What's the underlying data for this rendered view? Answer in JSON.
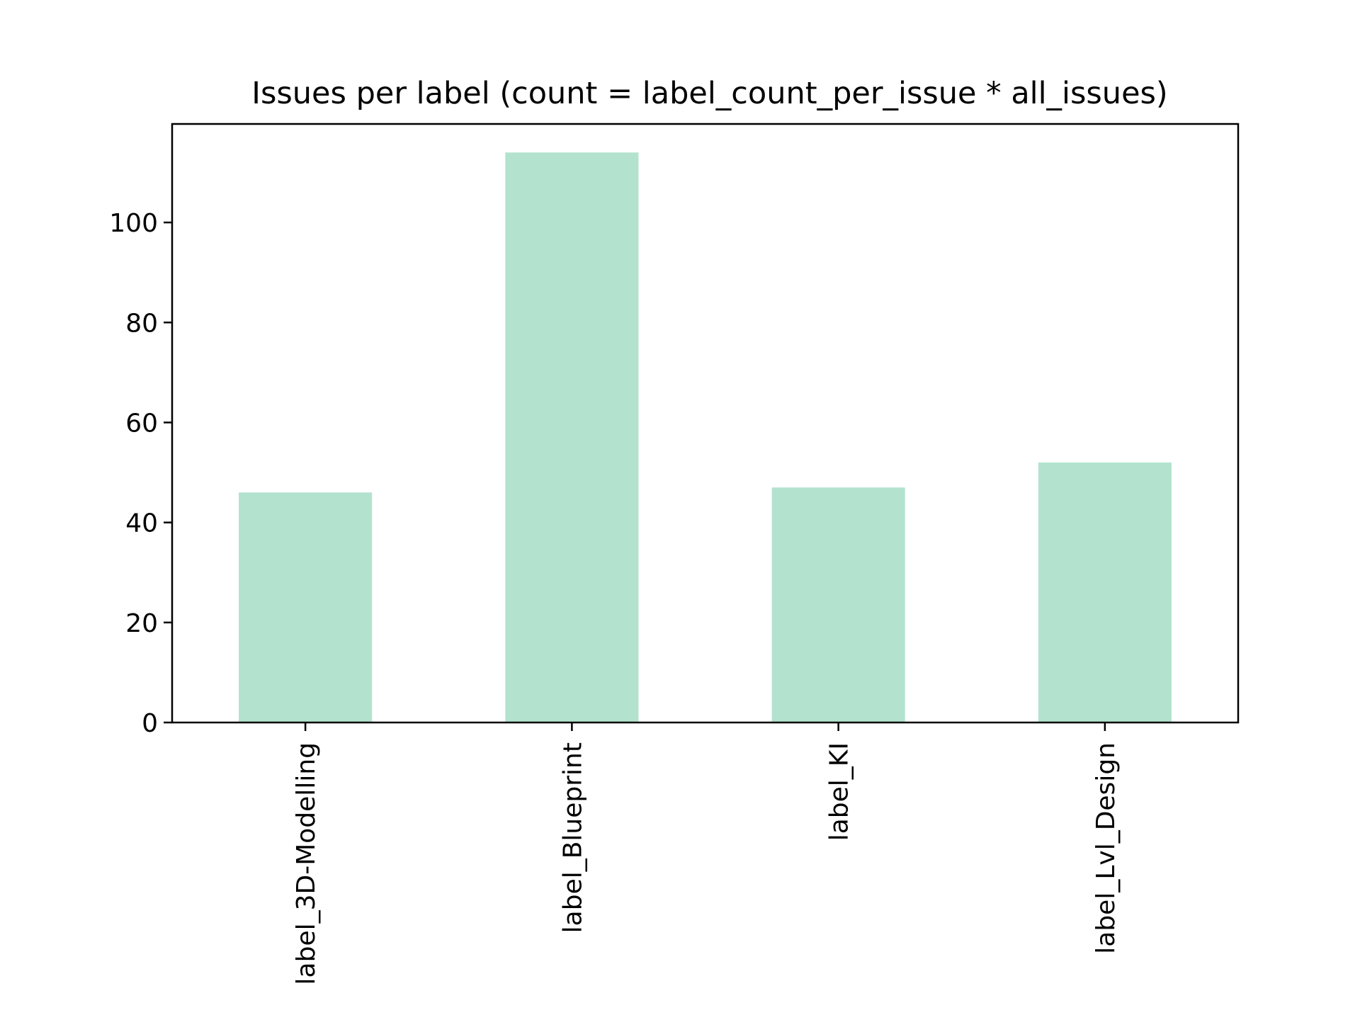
{
  "chart_data": {
    "type": "bar",
    "title": "Issues per label (count = label_count_per_issue * all_issues)",
    "xlabel": "",
    "ylabel": "",
    "categories": [
      "label_3D-Modelling",
      "label_Blueprint",
      "label_KI",
      "label_Lvl_Design"
    ],
    "values": [
      46,
      114,
      47,
      52
    ],
    "ylim": [
      0,
      119.7
    ],
    "yticks": [
      0,
      20,
      40,
      60,
      80,
      100
    ],
    "bar_color": "#b3e3ce",
    "grid": false,
    "legend": "none"
  }
}
